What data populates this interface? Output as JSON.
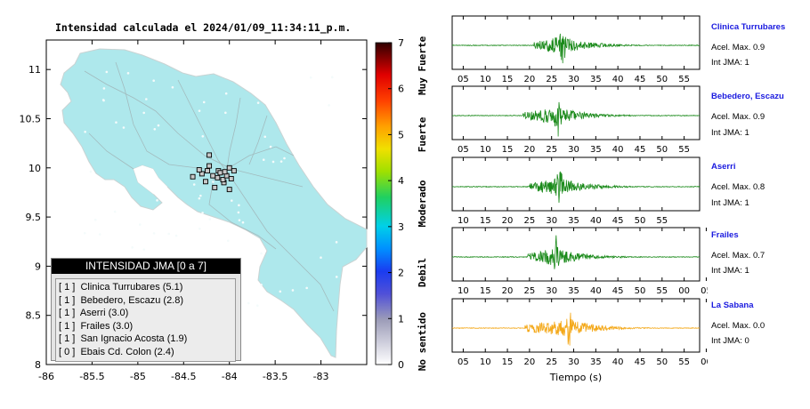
{
  "title": "Intensidad calculada el 2024/01/09_11:34:11_p.m.",
  "map": {
    "xticks": [
      "-86",
      "-85.5",
      "-85",
      "-84.5",
      "-84",
      "-83.5",
      "-83"
    ],
    "yticks": [
      "11",
      "10.5",
      "10",
      "9.5",
      "9",
      "8.5",
      "8"
    ],
    "xlim": [
      -86,
      -82.5
    ],
    "ylim": [
      8,
      11.3
    ],
    "land_color": "#aee8ec",
    "stations": [
      {
        "lon": -84.22,
        "lat": 10.13
      },
      {
        "lon": -84.13,
        "lat": 9.9
      },
      {
        "lon": -84.06,
        "lat": 9.85
      },
      {
        "lon": -84.16,
        "lat": 9.8
      },
      {
        "lon": -84.0,
        "lat": 9.78
      },
      {
        "lon": -84.07,
        "lat": 9.88
      },
      {
        "lon": -84.4,
        "lat": 9.91
      },
      {
        "lon": -84.3,
        "lat": 9.94
      },
      {
        "lon": -84.33,
        "lat": 9.98
      },
      {
        "lon": -84.24,
        "lat": 9.97
      },
      {
        "lon": -84.12,
        "lat": 9.97
      },
      {
        "lon": -84.1,
        "lat": 9.95
      },
      {
        "lon": -84.03,
        "lat": 9.92
      },
      {
        "lon": -84.18,
        "lat": 9.92
      },
      {
        "lon": -84.05,
        "lat": 9.96
      },
      {
        "lon": -84.22,
        "lat": 10.02
      },
      {
        "lon": -84.0,
        "lat": 10.0
      },
      {
        "lon": -83.95,
        "lat": 9.97
      },
      {
        "lon": -83.98,
        "lat": 9.89
      },
      {
        "lon": -84.26,
        "lat": 9.86
      }
    ]
  },
  "legend": {
    "header": "INTENSIDAD JMA [0 a 7]",
    "items": [
      "[ 1 ]  Clinica Turrubares (5.1)",
      "[ 1 ]  Bebedero, Escazu (2.8)",
      "[ 1 ]  Aserri (3.0)",
      "[ 1 ]  Frailes (3.0)",
      "[ 1 ]  San Ignacio Acosta (1.9)",
      "[ 0 ]  Ebais Cd. Colon (2.4)"
    ]
  },
  "colorbar": {
    "ticks": [
      "0",
      "1",
      "2",
      "3",
      "4",
      "5",
      "6",
      "7"
    ],
    "labels": [
      {
        "text": "No sentido",
        "center": 0.5
      },
      {
        "text": "Debil",
        "center": 2.0
      },
      {
        "text": "Moderado",
        "center": 3.5
      },
      {
        "text": "Fuerte",
        "center": 5.0
      },
      {
        "text": "Muy Fuerte",
        "center": 6.5
      }
    ]
  },
  "waveforms": {
    "xlabel": "Tiempo (s)",
    "stations": [
      {
        "name": "Clinica Turrubares",
        "acel": "Acel. Max. 0.9",
        "int": "Int JMA: 1",
        "color": "#1a8a1a",
        "ticks": [
          "05",
          "10",
          "15",
          "20",
          "25",
          "30",
          "35",
          "40",
          "45",
          "50",
          "55"
        ],
        "onset": 21,
        "peak": 27.5
      },
      {
        "name": "Bebedero, Escazu",
        "acel": "Acel. Max. 0.9",
        "int": "Int JMA: 1",
        "color": "#1a8a1a",
        "ticks": [
          "05",
          "10",
          "15",
          "20",
          "25",
          "30",
          "35",
          "40",
          "45",
          "50",
          "55"
        ],
        "onset": 18.5,
        "peak": 26.5
      },
      {
        "name": "Aserri",
        "acel": "Acel. Max. 0.8",
        "int": "Int JMA: 1",
        "color": "#1a8a1a",
        "ticks": [
          "10",
          "15",
          "20",
          "25",
          "30",
          "35",
          "40",
          "45",
          "50",
          "55"
        ],
        "onset": 20,
        "peak": 26.8
      },
      {
        "name": "Frailes",
        "acel": "Acel. Max. 0.7",
        "int": "Int JMA: 1",
        "color": "#1a8a1a",
        "ticks": [
          "10",
          "15",
          "20",
          "25",
          "30",
          "35",
          "40",
          "45",
          "50",
          "55",
          "00",
          "05"
        ],
        "onset": 19.5,
        "peak": 26
      },
      {
        "name": "La Sabana",
        "acel": "Acel. Max. 0.0",
        "int": "Int JMA: 0",
        "color": "#f4a818",
        "ticks": [
          "05",
          "10",
          "15",
          "20",
          "25",
          "30",
          "35",
          "40",
          "45",
          "50",
          "55",
          "00"
        ],
        "onset": 19,
        "peak": 29
      }
    ]
  }
}
